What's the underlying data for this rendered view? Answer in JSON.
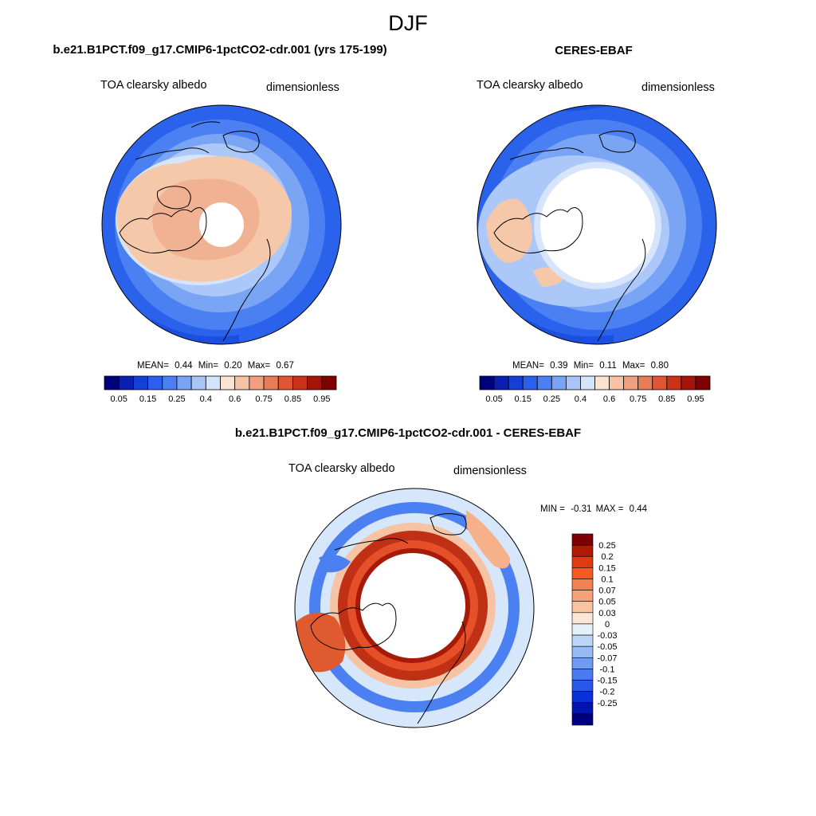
{
  "figure_title": "DJF",
  "panels": [
    {
      "title": "b.e21.B1PCT.f09_g17.CMIP6-1pctCO2-cdr.001 (yrs 175-199)",
      "left_label": "TOA clearsky albedo",
      "right_label": "dimensionless",
      "stats": {
        "mean_label": "MEAN=",
        "mean": "0.44",
        "min_label": "Min=",
        "min": "0.20",
        "max_label": "Max=",
        "max": "0.67"
      }
    },
    {
      "title": "CERES-EBAF",
      "left_label": "TOA clearsky albedo",
      "right_label": "dimensionless",
      "stats": {
        "mean_label": "MEAN=",
        "mean": "0.39",
        "min_label": "Min=",
        "min": "0.11",
        "max_label": "Max=",
        "max": "0.80"
      }
    },
    {
      "title": "b.e21.B1PCT.f09_g17.CMIP6-1pctCO2-cdr.001 - CERES-EBAF",
      "left_label": "TOA clearsky albedo",
      "right_label": "dimensionless",
      "stats": {
        "min_label": "MIN =",
        "min": "-0.31",
        "max_label": "MAX =",
        "max": "0.44"
      }
    }
  ],
  "colorbar_abs": {
    "colors": [
      "#00007f",
      "#0a1fb0",
      "#1440d8",
      "#2b5fee",
      "#4b7ff2",
      "#7aa3f5",
      "#a8c5f8",
      "#d4e4fb",
      "#fbe3d2",
      "#f7c3a6",
      "#f0a07e",
      "#e87b58",
      "#df5636",
      "#cc3119",
      "#a51409",
      "#7f0000"
    ],
    "tick_labels": [
      "0.05",
      "0.15",
      "0.25",
      "0.4",
      "0.6",
      "0.75",
      "0.85",
      "0.95"
    ]
  },
  "colorbar_diff": {
    "colors": [
      "#7f0000",
      "#b01a04",
      "#e03a10",
      "#f55a22",
      "#f58052",
      "#f6a27a",
      "#f8c4a4",
      "#fde6d6",
      "#e6f0fb",
      "#bdd6f7",
      "#96baf3",
      "#6e9cf0",
      "#4a7aef",
      "#2858ea",
      "#0a30d8",
      "#0014b0",
      "#00007f"
    ],
    "tick_labels": [
      "0.25",
      "0.2",
      "0.15",
      "0.1",
      "0.07",
      "0.05",
      "0.03",
      "0",
      "-0.03",
      "-0.05",
      "-0.07",
      "-0.1",
      "-0.15",
      "-0.2",
      "-0.25"
    ]
  }
}
